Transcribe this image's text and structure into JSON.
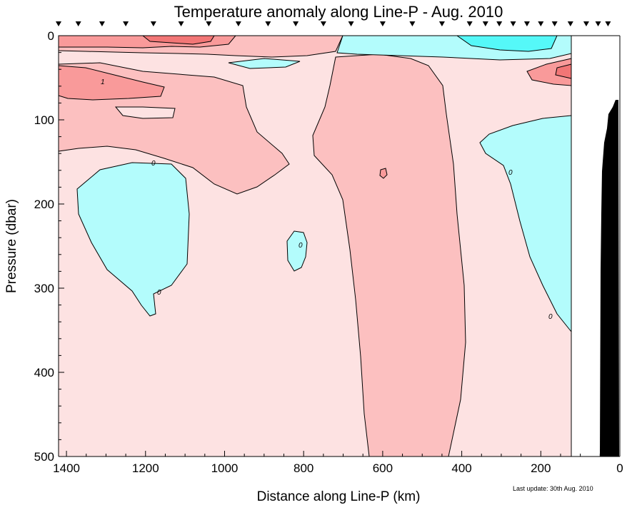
{
  "chart_data": {
    "type": "contour",
    "title": "Temperature anomaly along Line-P - Aug. 2010",
    "xlabel": "Distance along Line-P (km)",
    "ylabel": "Pressure (dbar)",
    "x_ticks": [
      "1400",
      "1200",
      "1000",
      "800",
      "600",
      "400",
      "200",
      "0"
    ],
    "x_tick_values": [
      1400,
      1200,
      1000,
      800,
      600,
      400,
      200,
      0
    ],
    "y_ticks": [
      "0",
      "100",
      "200",
      "300",
      "400",
      "500"
    ],
    "y_tick_values": [
      0,
      100,
      200,
      300,
      400,
      500
    ],
    "xlim": [
      1420,
      0
    ],
    "ylim": [
      0,
      500
    ],
    "contour_labels": [
      "1",
      "0",
      "0",
      "0",
      "0",
      "0"
    ],
    "station_markers_km": [
      1420,
      1370,
      1310,
      1250,
      1180,
      1110,
      1040,
      965,
      890,
      820,
      750,
      680,
      600,
      525,
      450,
      380,
      340,
      305,
      270,
      235,
      200,
      165,
      125,
      85,
      55,
      30
    ],
    "last_update": "Last update: 30th Aug. 2010",
    "colors": {
      "positive_weak": "#fde2e2",
      "positive": "#fcc0c0",
      "positive_strong": "#f99a9a",
      "positive_max": "#f27676",
      "negative": "#b3fcfc",
      "negative_strong": "#55f8f8",
      "bottom": "#000000"
    }
  }
}
